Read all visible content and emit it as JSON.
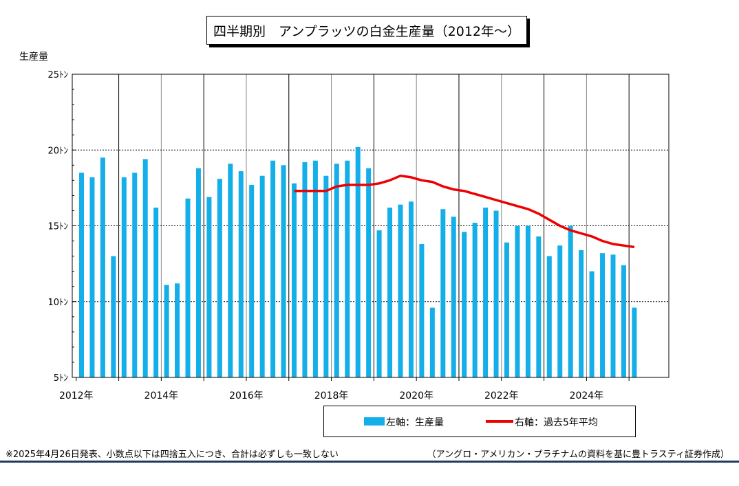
{
  "chart_data": {
    "type": "bar",
    "title": "四半期別　アンプラッツの白金生産量（2012年～）",
    "ylabel": "生産量",
    "ylim": [
      5,
      25
    ],
    "yticks": [
      {
        "value": 5,
        "label": "5ﾄﾝ"
      },
      {
        "value": 10,
        "label": "10ﾄﾝ"
      },
      {
        "value": 15,
        "label": "15ﾄﾝ"
      },
      {
        "value": 20,
        "label": "20ﾄﾝ"
      },
      {
        "value": 25,
        "label": "25ﾄﾝ"
      }
    ],
    "year_labels": [
      "2012年",
      "2014年",
      "2016年",
      "2018年",
      "2020年",
      "2022年",
      "2024年"
    ],
    "x_start_year": 2012,
    "grid": true,
    "legend_position": "bottom",
    "series": [
      {
        "name": "左軸：生産量",
        "type": "bar",
        "color": "#14AEE8",
        "values": [
          18.5,
          18.2,
          19.5,
          13.0,
          18.2,
          18.5,
          19.4,
          16.2,
          11.1,
          11.2,
          16.8,
          18.8,
          16.9,
          18.1,
          19.1,
          18.6,
          17.7,
          18.3,
          19.3,
          19.0,
          17.8,
          19.2,
          19.3,
          18.3,
          19.1,
          19.3,
          20.2,
          18.8,
          14.7,
          16.2,
          16.4,
          16.6,
          13.8,
          9.6,
          16.1,
          15.6,
          14.6,
          15.2,
          16.2,
          16.0,
          13.9,
          15.0,
          15.0,
          14.3,
          13.0,
          13.7,
          15.0,
          13.4,
          12.0,
          13.2,
          13.1,
          12.4,
          9.6
        ]
      },
      {
        "name": "右軸：過去5年平均",
        "type": "line",
        "color": "#EE0000",
        "start_index": 20,
        "values": [
          17.3,
          17.3,
          17.3,
          17.3,
          17.6,
          17.7,
          17.7,
          17.7,
          17.8,
          18.0,
          18.3,
          18.2,
          18.0,
          17.9,
          17.6,
          17.4,
          17.3,
          17.1,
          16.9,
          16.7,
          16.5,
          16.3,
          16.1,
          15.8,
          15.4,
          15.0,
          14.7,
          14.5,
          14.3,
          14.0,
          13.8,
          13.7,
          13.6
        ]
      }
    ]
  },
  "footer": {
    "note": "※2025年4月26日発表、小数点以下は四捨五入につき、合計は必ずしも一致しない",
    "source": "（アングロ・アメリカン・プラチナムの資料を基に豊トラスティ証券作成）"
  }
}
